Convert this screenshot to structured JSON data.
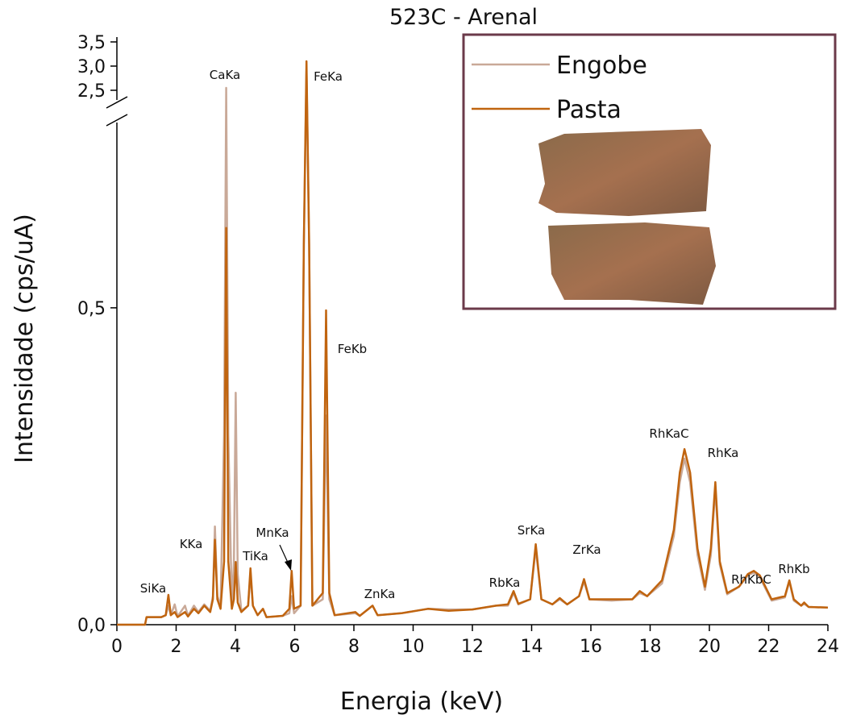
{
  "chart_data": {
    "type": "line",
    "title": "523C - Arenal",
    "x_label": "Energia (keV)",
    "y_label": "Intensidade (cps/uA)",
    "xlim": [
      0,
      24
    ],
    "xticks": [
      0,
      2,
      4,
      6,
      8,
      10,
      12,
      14,
      16,
      18,
      20,
      22,
      24
    ],
    "ylim": [
      0,
      3.6
    ],
    "y_break": [
      0.8,
      2.2
    ],
    "yticks": [
      {
        "value": 0,
        "label": "0,0"
      },
      {
        "value": 0.5,
        "label": "0,5"
      },
      {
        "value": 2.5,
        "label": "2,5"
      },
      {
        "value": 3,
        "label": "3,0"
      },
      {
        "value": 3.5,
        "label": "3,5"
      }
    ],
    "x": [
      0,
      0.95,
      1.0,
      1.5,
      1.65,
      1.74,
      1.82,
      1.95,
      2.05,
      2.3,
      2.4,
      2.6,
      2.75,
      2.95,
      3.15,
      3.24,
      3.31,
      3.39,
      3.5,
      3.62,
      3.69,
      3.76,
      3.88,
      3.95,
      4.01,
      4.08,
      4.2,
      4.43,
      4.51,
      4.59,
      4.75,
      4.93,
      5.05,
      5.6,
      5.82,
      5.9,
      5.98,
      6.2,
      6.31,
      6.4,
      6.49,
      6.6,
      6.95,
      7.06,
      7.17,
      7.35,
      8.05,
      8.2,
      8.63,
      8.8,
      9.6,
      10.5,
      11.2,
      12.0,
      12.8,
      13.2,
      13.39,
      13.55,
      13.95,
      14.14,
      14.33,
      14.7,
      14.95,
      15.2,
      15.6,
      15.77,
      15.95,
      16.7,
      17.4,
      17.65,
      17.9,
      18.4,
      18.8,
      19.0,
      19.16,
      19.35,
      19.6,
      19.85,
      20.05,
      20.2,
      20.35,
      20.6,
      21.0,
      21.3,
      21.5,
      21.7,
      22.1,
      22.55,
      22.7,
      22.85,
      23.1,
      23.2,
      23.35,
      24
    ],
    "series": [
      {
        "name": "Engobe",
        "color": "#c9a998",
        "values": [
          0,
          0,
          0.012,
          0.012,
          0.015,
          0.03,
          0.015,
          0.032,
          0.013,
          0.03,
          0.014,
          0.03,
          0.02,
          0.032,
          0.022,
          0.045,
          0.155,
          0.045,
          0.03,
          0.3,
          2.55,
          0.3,
          0.03,
          0.1,
          0.366,
          0.08,
          0.022,
          0.03,
          0.08,
          0.03,
          0.015,
          0.025,
          0.012,
          0.014,
          0.018,
          0.045,
          0.018,
          0.03,
          0.6,
          2.9,
          0.6,
          0.03,
          0.04,
          0.33,
          0.04,
          0.015,
          0.018,
          0.014,
          0.03,
          0.015,
          0.018,
          0.025,
          0.024,
          0.024,
          0.03,
          0.03,
          0.05,
          0.032,
          0.04,
          0.12,
          0.04,
          0.032,
          0.04,
          0.032,
          0.045,
          0.068,
          0.04,
          0.038,
          0.04,
          0.05,
          0.045,
          0.065,
          0.14,
          0.225,
          0.262,
          0.225,
          0.11,
          0.055,
          0.11,
          0.215,
          0.095,
          0.048,
          0.06,
          0.078,
          0.082,
          0.075,
          0.038,
          0.043,
          0.068,
          0.038,
          0.03,
          0.033,
          0.028,
          0.027
        ]
      },
      {
        "name": "Pasta",
        "color": "#c0640f",
        "values": [
          0,
          0,
          0.012,
          0.012,
          0.015,
          0.047,
          0.015,
          0.02,
          0.012,
          0.02,
          0.013,
          0.025,
          0.018,
          0.03,
          0.02,
          0.04,
          0.134,
          0.04,
          0.025,
          0.1,
          0.626,
          0.1,
          0.025,
          0.04,
          0.099,
          0.035,
          0.02,
          0.03,
          0.089,
          0.03,
          0.015,
          0.025,
          0.012,
          0.014,
          0.025,
          0.085,
          0.025,
          0.03,
          0.6,
          3.1,
          0.6,
          0.03,
          0.05,
          0.496,
          0.05,
          0.015,
          0.02,
          0.014,
          0.03,
          0.015,
          0.018,
          0.025,
          0.022,
          0.024,
          0.03,
          0.032,
          0.053,
          0.033,
          0.04,
          0.127,
          0.04,
          0.032,
          0.042,
          0.032,
          0.045,
          0.072,
          0.04,
          0.04,
          0.04,
          0.053,
          0.045,
          0.07,
          0.15,
          0.24,
          0.277,
          0.24,
          0.12,
          0.06,
          0.12,
          0.225,
          0.1,
          0.05,
          0.06,
          0.08,
          0.085,
          0.078,
          0.04,
          0.045,
          0.07,
          0.04,
          0.03,
          0.035,
          0.028,
          0.027
        ]
      }
    ],
    "annotations": [
      "SiKa",
      "CaKa",
      "KKa",
      "FeKa",
      "TiKa",
      "MnKa",
      "FeKb",
      "ZnKa",
      "RbKa",
      "SrKa",
      "ZrKa",
      "RhKaC",
      "RhKa",
      "RhKbC",
      "RhKb"
    ]
  }
}
